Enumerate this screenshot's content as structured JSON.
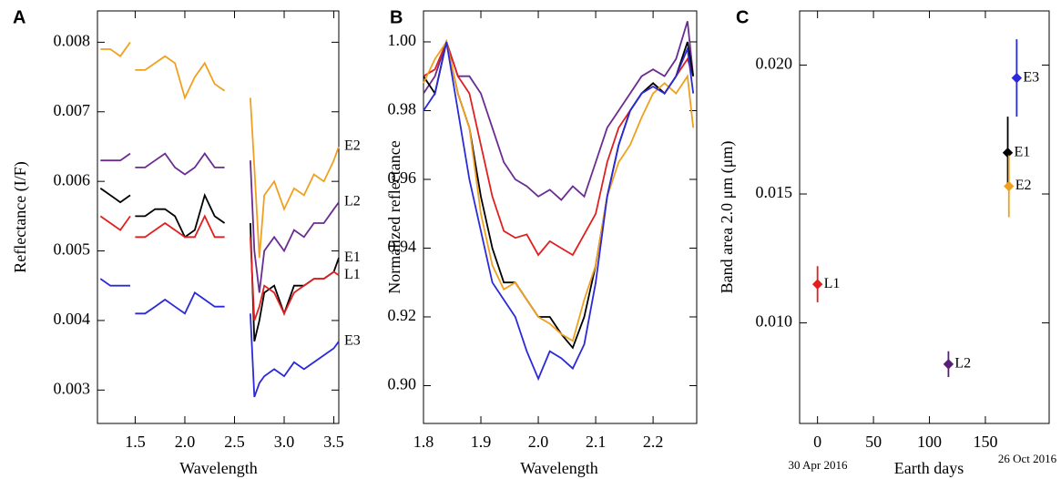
{
  "chart_data": [
    {
      "type": "line",
      "panel": "A",
      "x_label": "Wavelength",
      "y_label": "Reflectance (I/F)",
      "xlim": [
        1.12,
        3.55
      ],
      "ylim": [
        0.00252,
        0.00845
      ],
      "xticks": [
        1.5,
        {
          "value": 2,
          "label": "2.0"
        },
        2.5,
        {
          "value": 3,
          "label": "3.0"
        },
        3.5
      ],
      "yticks": [
        0.003,
        0.004,
        0.005,
        0.006,
        0.007,
        0.008
      ],
      "x": [
        1.15,
        1.25,
        1.35,
        1.45,
        1.48,
        1.5,
        1.6,
        1.7,
        1.8,
        1.9,
        2.0,
        2.1,
        2.2,
        2.3,
        2.4,
        2.5,
        2.66,
        2.7,
        2.75,
        2.8,
        2.9,
        3.0,
        3.1,
        3.2,
        3.3,
        3.4,
        3.5,
        3.55
      ],
      "series": [
        {
          "name": "E2",
          "color": "#f0a020",
          "values": [
            0.0079,
            0.0079,
            0.0078,
            0.008,
            null,
            0.0076,
            0.0076,
            0.0077,
            0.0078,
            0.0077,
            0.0072,
            0.0075,
            0.0077,
            0.0074,
            0.0073,
            null,
            0.0072,
            0.0062,
            0.0049,
            0.0058,
            0.006,
            0.0056,
            0.0059,
            0.0058,
            0.0061,
            0.006,
            0.0063,
            0.0065
          ]
        },
        {
          "name": "L2",
          "color": "#6a2c91",
          "values": [
            0.0063,
            0.0063,
            0.0063,
            0.0064,
            null,
            0.0062,
            0.0062,
            0.0063,
            0.0064,
            0.0062,
            0.0061,
            0.0062,
            0.0064,
            0.0062,
            0.0062,
            null,
            0.0063,
            0.005,
            0.0044,
            0.005,
            0.0052,
            0.005,
            0.0053,
            0.0052,
            0.0054,
            0.0054,
            0.0056,
            0.0057
          ]
        },
        {
          "name": "E1",
          "color": "#000000",
          "values": [
            0.0059,
            0.0058,
            0.0057,
            0.0058,
            null,
            0.0055,
            0.0055,
            0.0056,
            0.0056,
            0.0055,
            0.0052,
            0.0053,
            0.0058,
            0.0055,
            0.0054,
            null,
            0.0054,
            0.0037,
            0.004,
            0.0044,
            0.0045,
            0.0041,
            0.0045,
            0.0045,
            0.0046,
            0.0046,
            0.0047,
            0.0049
          ]
        },
        {
          "name": "L1",
          "color": "#e02020",
          "values": [
            0.0055,
            0.0054,
            0.0053,
            0.0055,
            null,
            0.0052,
            0.0052,
            0.0053,
            0.0054,
            0.0053,
            0.0052,
            0.0052,
            0.0055,
            0.0052,
            0.0052,
            null,
            0.0052,
            0.004,
            0.0042,
            0.0045,
            0.0044,
            0.0041,
            0.0044,
            0.0045,
            0.0046,
            0.0046,
            0.0047,
            0.00465
          ]
        },
        {
          "name": "E3",
          "color": "#2a2ad8",
          "values": [
            0.0046,
            0.0045,
            0.0045,
            0.0045,
            null,
            0.0041,
            0.0041,
            0.0042,
            0.0043,
            0.0042,
            0.0041,
            0.0044,
            0.0043,
            0.0042,
            0.0042,
            null,
            0.0041,
            0.0029,
            0.0031,
            0.0032,
            0.0033,
            0.0032,
            0.0034,
            0.0033,
            0.0034,
            0.0035,
            0.0036,
            0.0037
          ]
        }
      ]
    },
    {
      "type": "line",
      "panel": "B",
      "x_label": "Wavelength",
      "y_label": "Normalized reflectance",
      "xlim": [
        1.8,
        2.276
      ],
      "ylim": [
        0.889,
        1.009
      ],
      "xticks": [
        1.8,
        1.9,
        {
          "value": 2,
          "label": "2.0"
        },
        2.1,
        2.2
      ],
      "yticks": [
        {
          "value": 0.9,
          "label": "0.90"
        },
        {
          "value": 0.92,
          "label": "0.92"
        },
        {
          "value": 0.94,
          "label": "0.94"
        },
        {
          "value": 0.96,
          "label": "0.96"
        },
        {
          "value": 0.98,
          "label": "0.98"
        },
        {
          "value": 1,
          "label": "1.00"
        }
      ],
      "x": [
        1.8,
        1.82,
        1.84,
        1.86,
        1.88,
        1.9,
        1.92,
        1.94,
        1.96,
        1.98,
        2.0,
        2.02,
        2.04,
        2.06,
        2.08,
        2.1,
        2.12,
        2.14,
        2.16,
        2.18,
        2.2,
        2.22,
        2.24,
        2.26,
        2.27
      ],
      "series": [
        {
          "color": "#6a2c91",
          "values": [
            0.985,
            0.99,
            1.0,
            0.99,
            0.99,
            0.985,
            0.975,
            0.965,
            0.96,
            0.958,
            0.955,
            0.957,
            0.954,
            0.958,
            0.955,
            0.965,
            0.975,
            0.98,
            0.985,
            0.99,
            0.992,
            0.99,
            0.995,
            1.006,
            0.99
          ]
        },
        {
          "color": "#e02020",
          "values": [
            0.99,
            0.992,
            1.0,
            0.99,
            0.985,
            0.97,
            0.955,
            0.945,
            0.943,
            0.944,
            0.938,
            0.942,
            0.94,
            0.938,
            0.944,
            0.95,
            0.965,
            0.975,
            0.98,
            0.985,
            0.988,
            0.985,
            0.99,
            0.995,
            0.99
          ]
        },
        {
          "color": "#000000",
          "values": [
            0.99,
            0.985,
            1.0,
            0.985,
            0.975,
            0.955,
            0.94,
            0.93,
            0.93,
            0.925,
            0.92,
            0.92,
            0.915,
            0.911,
            0.92,
            0.935,
            0.955,
            0.97,
            0.98,
            0.985,
            0.988,
            0.985,
            0.99,
            1.0,
            0.99
          ]
        },
        {
          "color": "#f0a020",
          "values": [
            0.988,
            0.995,
            1.0,
            0.985,
            0.975,
            0.95,
            0.935,
            0.928,
            0.93,
            0.925,
            0.92,
            0.918,
            0.915,
            0.913,
            0.925,
            0.935,
            0.955,
            0.965,
            0.97,
            0.978,
            0.985,
            0.988,
            0.985,
            0.99,
            0.975
          ]
        },
        {
          "color": "#2a2ad8",
          "values": [
            0.98,
            0.985,
            1.0,
            0.98,
            0.96,
            0.945,
            0.93,
            0.925,
            0.92,
            0.91,
            0.902,
            0.91,
            0.908,
            0.905,
            0.912,
            0.93,
            0.955,
            0.97,
            0.98,
            0.985,
            0.987,
            0.985,
            0.99,
            0.998,
            0.985
          ]
        }
      ]
    },
    {
      "type": "scatter",
      "panel": "C",
      "x_label": "Earth days",
      "y_label": "Band area 2.0 μm (μm)",
      "annotations": [
        "30 Apr 2016",
        "26 Oct 2016"
      ],
      "xlim": [
        -16,
        207
      ],
      "ylim": [
        0.0061,
        0.0221
      ],
      "xticks": [
        0,
        50,
        100,
        150
      ],
      "yticks": [
        {
          "value": 0.01,
          "label": "0.010"
        },
        {
          "value": 0.015,
          "label": "0.015"
        },
        {
          "value": 0.02,
          "label": "0.020"
        }
      ],
      "series": [
        {
          "name": "L1",
          "color": "#e02020",
          "x": [
            0
          ],
          "values": [
            0.0115
          ],
          "errors": [
            0.0007
          ]
        },
        {
          "name": "L2",
          "color": "#5a1c7a",
          "x": [
            117
          ],
          "values": [
            0.0084
          ],
          "errors": [
            0.0005
          ]
        },
        {
          "name": "E1",
          "color": "#000000",
          "x": [
            170
          ],
          "values": [
            0.0166
          ],
          "errors": [
            0.0014
          ]
        },
        {
          "name": "E2",
          "color": "#f0a020",
          "x": [
            171
          ],
          "values": [
            0.0153
          ],
          "errors": [
            0.0012
          ]
        },
        {
          "name": "E3",
          "color": "#2a2ad8",
          "x": [
            178
          ],
          "values": [
            0.0195
          ],
          "errors": [
            0.0015
          ]
        }
      ]
    }
  ]
}
